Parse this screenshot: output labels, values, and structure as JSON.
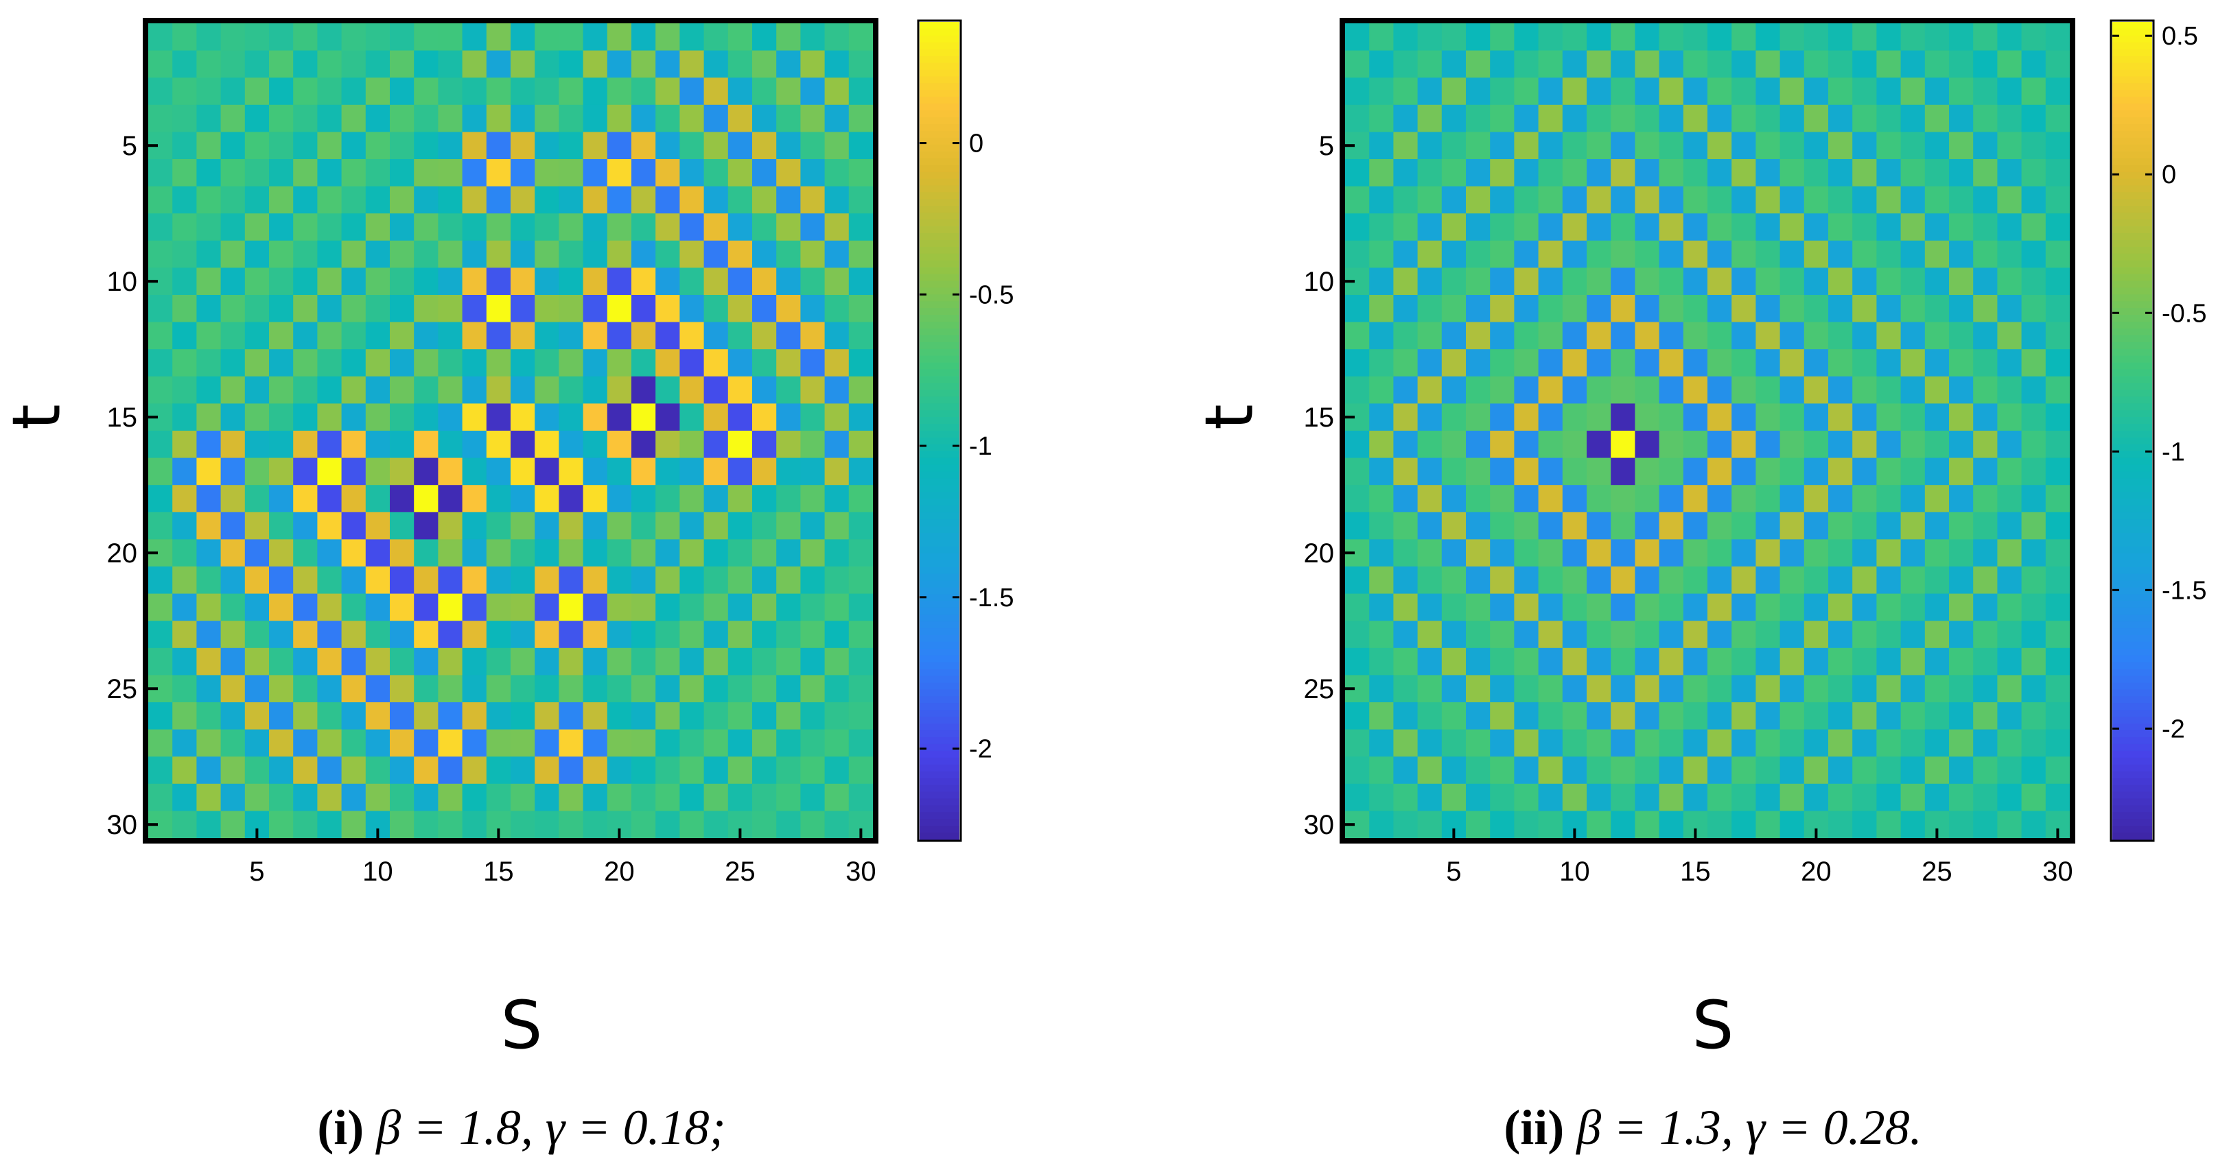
{
  "chart_data": [
    {
      "type": "heatmap",
      "grid_size": 30,
      "xlabel": "S",
      "ylabel": "t",
      "x_ticks": [
        "5",
        "10",
        "15",
        "20",
        "25",
        "30"
      ],
      "y_ticks": [
        "5",
        "10",
        "15",
        "20",
        "25",
        "30"
      ],
      "colorbar": {
        "range": [
          -2.3,
          0.4
        ],
        "ticks": [
          {
            "value": 0,
            "label": "0"
          },
          {
            "value": -0.5,
            "label": "-0.5"
          },
          {
            "value": -1,
            "label": "-1"
          },
          {
            "value": -1.5,
            "label": "-1.5"
          },
          {
            "value": -2,
            "label": "-2"
          }
        ]
      },
      "caption": {
        "num": "(i)",
        "text": " β = 1.8, γ = 0.18;"
      },
      "pattern": {
        "background": -0.85,
        "checker_amplitude": 1.1,
        "peaks": [
          {
            "row": 18,
            "col": 12,
            "amplitude": 1.6
          },
          {
            "row": 15,
            "col": 21,
            "amplitude": 1.5
          }
        ]
      }
    },
    {
      "type": "heatmap",
      "grid_size": 30,
      "xlabel": "S",
      "ylabel": "t",
      "x_ticks": [
        "5",
        "10",
        "15",
        "20",
        "25",
        "30"
      ],
      "y_ticks": [
        "5",
        "10",
        "15",
        "20",
        "25",
        "30"
      ],
      "colorbar": {
        "range": [
          -2.4,
          0.55
        ],
        "ticks": [
          {
            "value": 0.5,
            "label": "0.5"
          },
          {
            "value": 0,
            "label": "0"
          },
          {
            "value": -0.5,
            "label": "-0.5"
          },
          {
            "value": -1,
            "label": "-1"
          },
          {
            "value": -1.5,
            "label": "-1.5"
          },
          {
            "value": -2,
            "label": "-2"
          }
        ]
      },
      "caption": {
        "num": "(ii)",
        "text": " β = 1.3, γ = 0.28."
      },
      "pattern": {
        "background": -0.9,
        "checker_amplitude": 1.15,
        "peaks": [
          {
            "row": 16,
            "col": 12,
            "amplitude": 1.6
          }
        ]
      }
    }
  ]
}
